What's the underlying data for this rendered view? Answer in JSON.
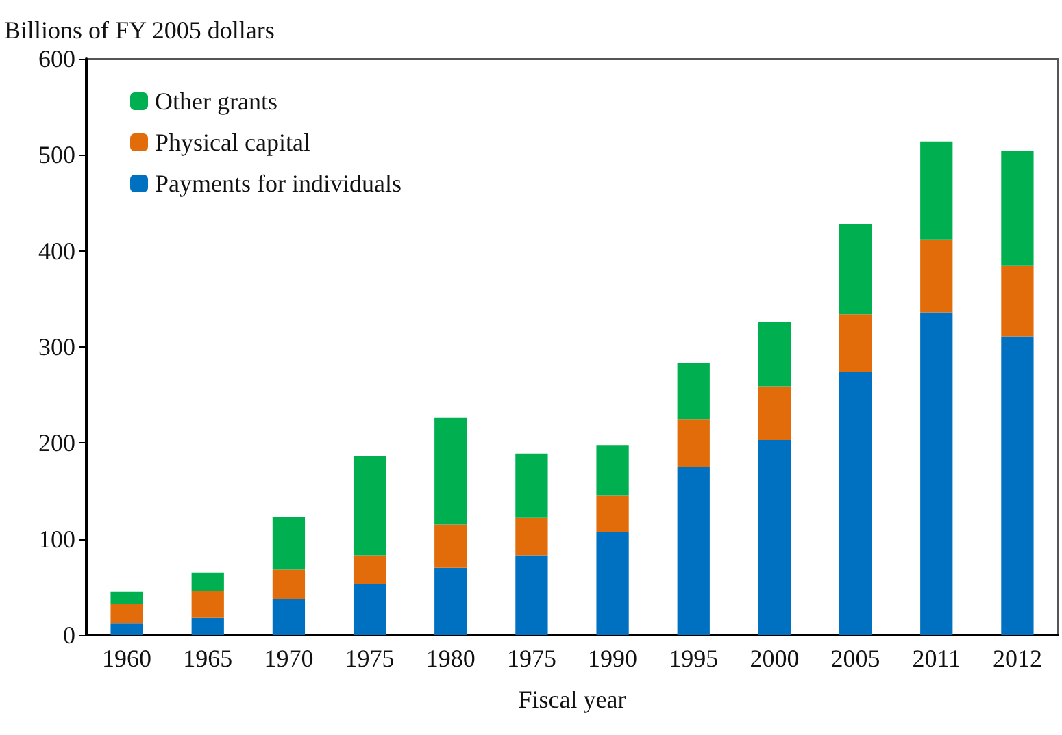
{
  "chart_data": {
    "type": "bar",
    "stacked": true,
    "xlabel": "Fiscal year",
    "ylabel": "Billions of FY 2005 dollars",
    "categories": [
      "1960",
      "1965",
      "1970",
      "1975",
      "1980",
      "1975",
      "1990",
      "1995",
      "2000",
      "2005",
      "2011",
      "2012"
    ],
    "series": [
      {
        "name": "Payments for individuals",
        "color": "#0070c0",
        "values": [
          12,
          18,
          37,
          53,
          70,
          83,
          107,
          175,
          203,
          274,
          336,
          311
        ]
      },
      {
        "name": "Physical capital",
        "color": "#e36c0a",
        "values": [
          20,
          28,
          31,
          30,
          45,
          39,
          38,
          50,
          56,
          60,
          76,
          74
        ]
      },
      {
        "name": "Other grants",
        "color": "#00b050",
        "values": [
          13,
          19,
          55,
          103,
          111,
          67,
          53,
          58,
          67,
          94,
          102,
          119
        ]
      }
    ],
    "ylim": [
      0,
      600
    ],
    "yticks": [
      0,
      100,
      200,
      300,
      400,
      500,
      600
    ],
    "grid": false,
    "legend": "top left"
  }
}
